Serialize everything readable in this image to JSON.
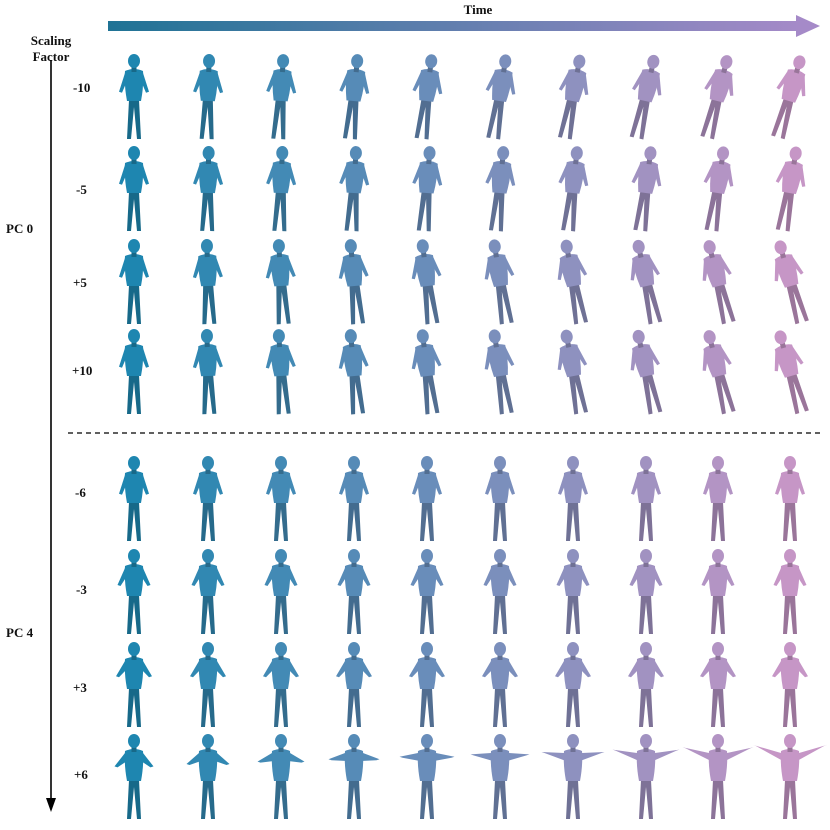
{
  "header": {
    "time_label": "Time"
  },
  "axis": {
    "scaling_label": "Scaling\nFactor"
  },
  "groups": [
    {
      "label": "PC 0",
      "rows": [
        "-10",
        "-5",
        "+5",
        "+10"
      ]
    },
    {
      "label": "PC 4",
      "rows": [
        "-6",
        "-3",
        "+3",
        "+6"
      ]
    }
  ],
  "columns_per_row": 10,
  "colors": {
    "start": "#1e86b0",
    "end": "#c696c6",
    "arrow_start": "#1f7395",
    "arrow_end": "#a58ac8",
    "divider": "#000000"
  }
}
